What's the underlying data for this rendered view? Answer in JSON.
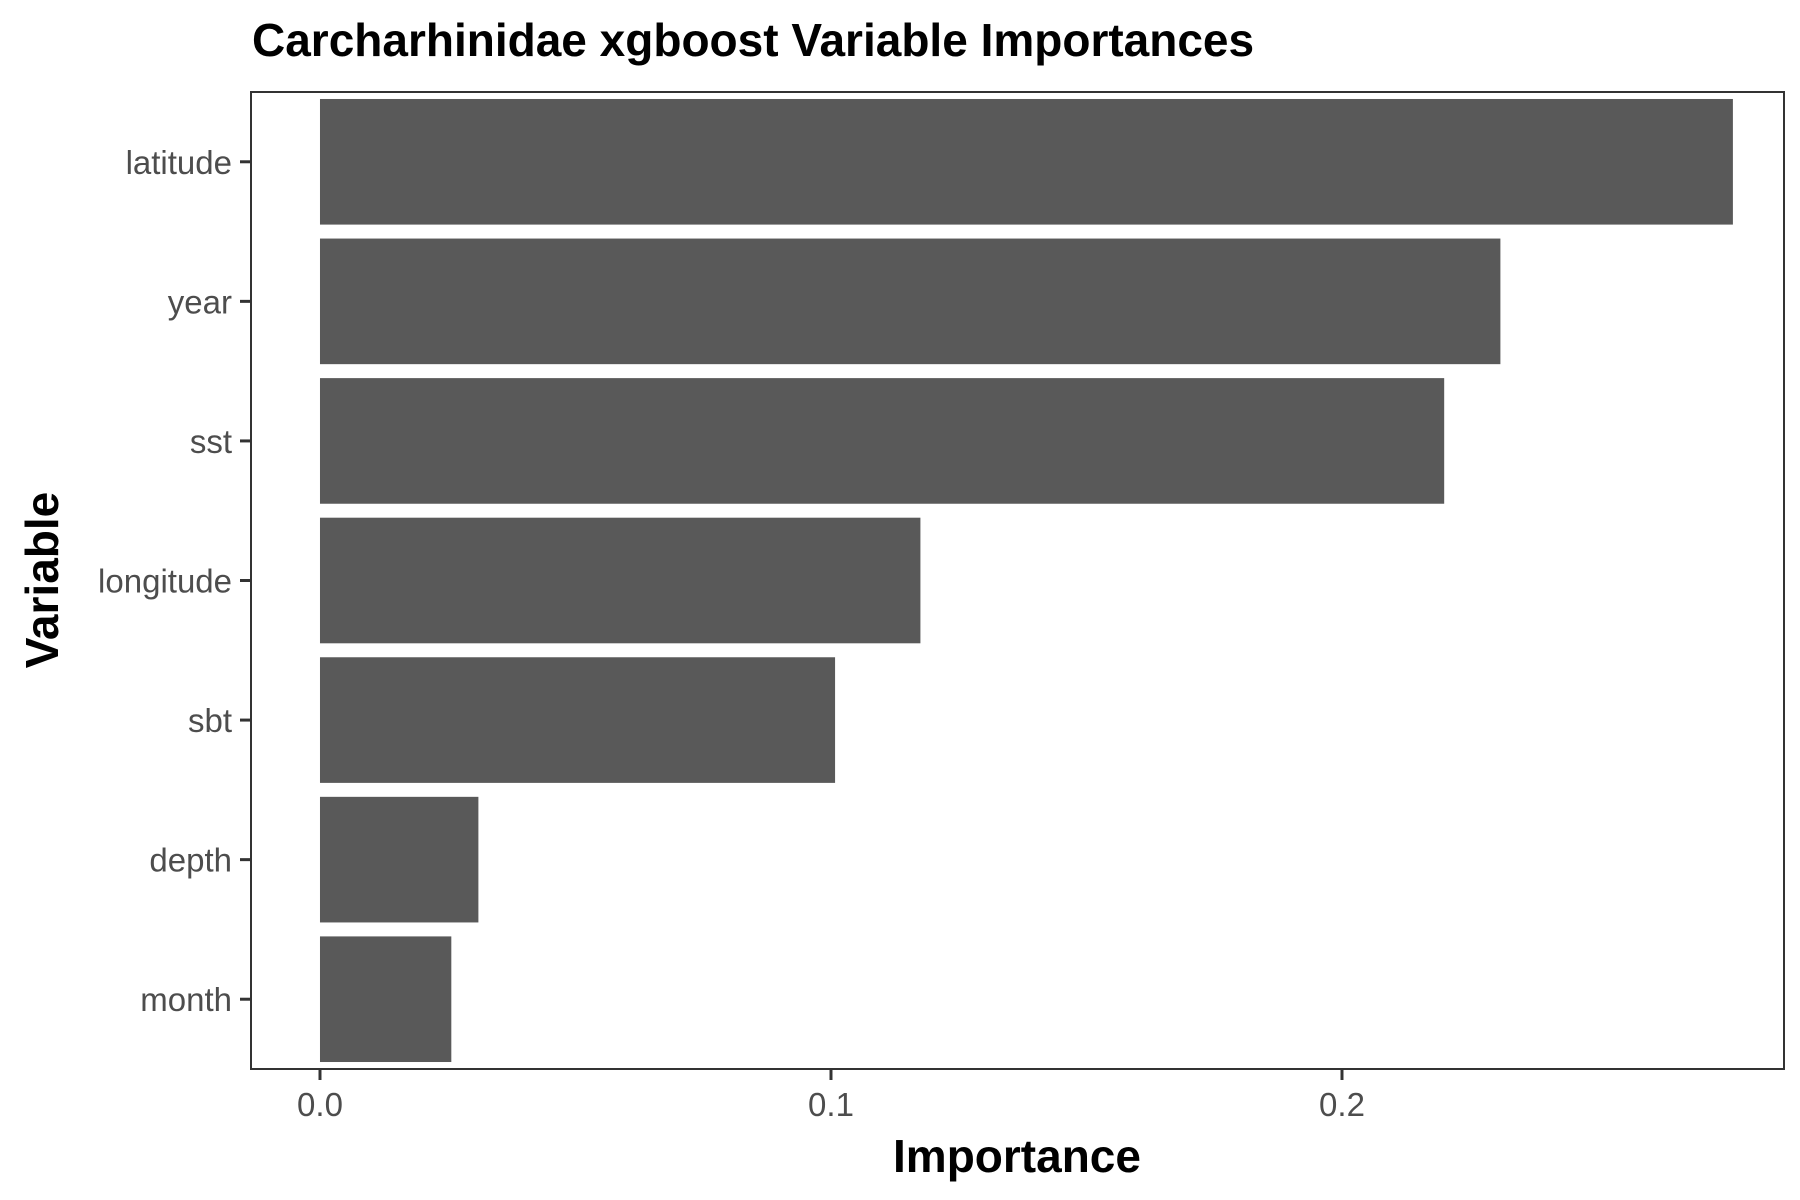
{
  "chart_data": {
    "type": "bar",
    "orientation": "horizontal",
    "title": "Carcharhinidae xgboost Variable Importances",
    "xlabel": "Importance",
    "ylabel": "Variable",
    "categories": [
      "latitude",
      "year",
      "sst",
      "longitude",
      "sbt",
      "depth",
      "month"
    ],
    "values": [
      0.2765,
      0.231,
      0.22,
      0.1175,
      0.1008,
      0.031,
      0.0257
    ],
    "xlim": [
      -0.0135,
      0.2865
    ],
    "xticks": [
      0.0,
      0.1,
      0.2
    ],
    "xtick_labels": [
      "0.0",
      "0.1",
      "0.2"
    ],
    "grid": false,
    "legend": "none",
    "bar_color": "#595959",
    "border_color": "#333333"
  }
}
